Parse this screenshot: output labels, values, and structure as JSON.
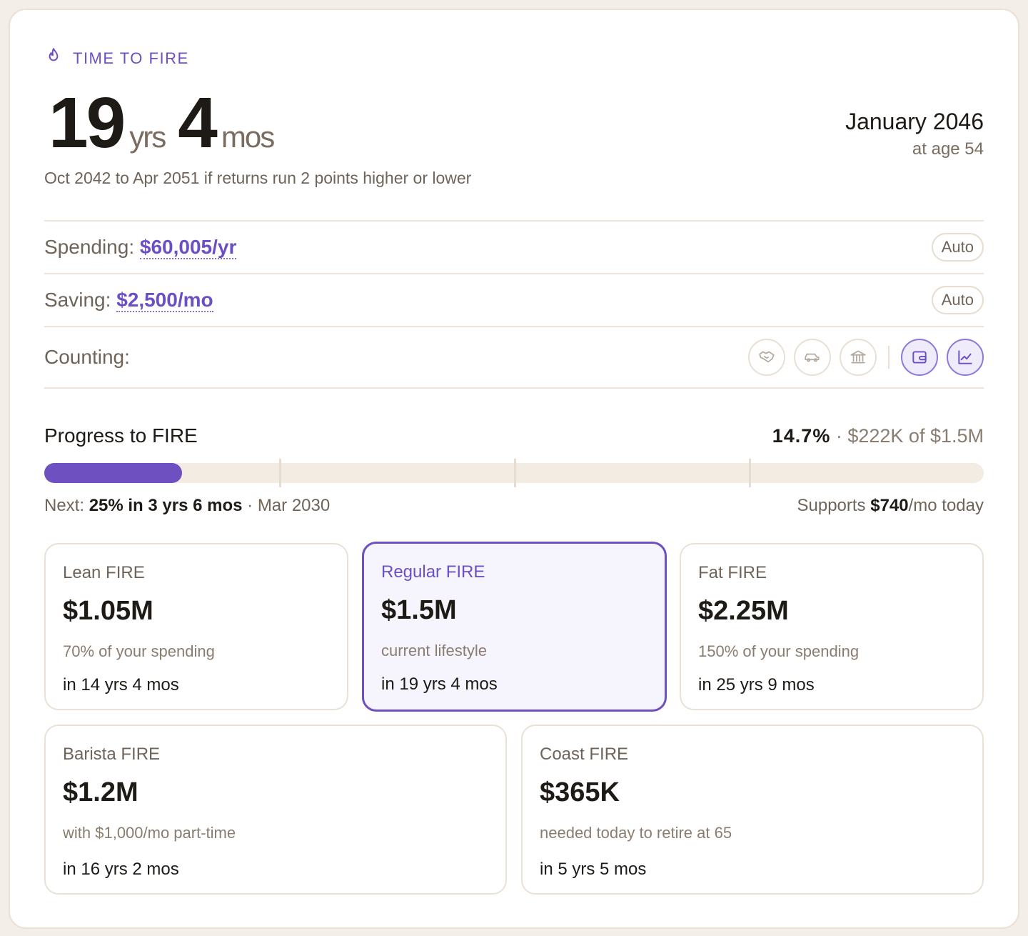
{
  "header": {
    "eyebrow": "TIME TO FIRE",
    "years": "19",
    "years_unit": "yrs",
    "months": "4",
    "months_unit": "mos",
    "target_date": "January 2046",
    "target_age": "at age 54",
    "range_text": "Oct 2042 to Apr 2051 if returns run 2 points higher or lower"
  },
  "settings": {
    "spending_label": "Spending:",
    "spending_value": "$60,005/yr",
    "spending_mode": "Auto",
    "saving_label": "Saving:",
    "saving_value": "$2,500/mo",
    "saving_mode": "Auto",
    "counting_label": "Counting:",
    "counting_toggles": [
      {
        "icon": "handshake-icon",
        "active": false
      },
      {
        "icon": "car-icon",
        "active": false
      },
      {
        "icon": "bank-icon",
        "active": false
      },
      {
        "icon": "wallet-icon",
        "active": true
      },
      {
        "icon": "chart-line-icon",
        "active": true
      }
    ]
  },
  "progress": {
    "title": "Progress to FIRE",
    "percent": "14.7%",
    "separator": "·",
    "amount_text": "$222K of $1.5M",
    "fraction": 0.147,
    "next_label": "Next:",
    "next_value": "25% in 3 yrs 6 mos",
    "next_date": "Mar 2030",
    "supports_prefix": "Supports",
    "supports_value": "$740",
    "supports_suffix": "/mo today",
    "milestones": [
      0.25,
      0.5,
      0.75
    ]
  },
  "fire_types": [
    {
      "title": "Lean FIRE",
      "amount": "$1.05M",
      "desc": "70% of your spending",
      "time": "in 14 yrs 4 mos",
      "selected": false
    },
    {
      "title": "Regular FIRE",
      "amount": "$1.5M",
      "desc": "current lifestyle",
      "time": "in 19 yrs 4 mos",
      "selected": true
    },
    {
      "title": "Fat FIRE",
      "amount": "$2.25M",
      "desc": "150% of your spending",
      "time": "in 25 yrs 9 mos",
      "selected": false
    },
    {
      "title": "Barista FIRE",
      "amount": "$1.2M",
      "desc": "with $1,000/mo part-time",
      "time": "in 16 yrs 2 mos",
      "selected": false
    },
    {
      "title": "Coast FIRE",
      "amount": "$365K",
      "desc": "needed today to retire at 65",
      "time": "in 5 yrs 5 mos",
      "selected": false
    }
  ],
  "colors": {
    "accent": "#6e50c0",
    "border": "#e9e1d6",
    "track": "#f3ece2",
    "muted_text": "#6f6459"
  }
}
